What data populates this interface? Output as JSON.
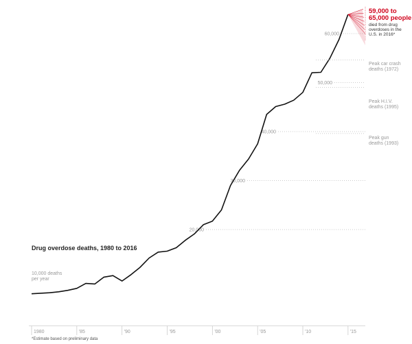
{
  "chart_data": {
    "type": "line",
    "title": "Drug overdose deaths, 1980 to 2016",
    "ylabel_lines": [
      "10,000 deaths",
      "per year"
    ],
    "xlim": [
      1980,
      2016
    ],
    "ylim": [
      0,
      65000
    ],
    "x_ticks": [
      {
        "value": 1980,
        "label": "1980"
      },
      {
        "value": 1985,
        "label": "'85"
      },
      {
        "value": 1990,
        "label": "'90"
      },
      {
        "value": 1995,
        "label": "'95"
      },
      {
        "value": 2000,
        "label": "'00"
      },
      {
        "value": 2005,
        "label": "'05"
      },
      {
        "value": 2010,
        "label": "'10"
      },
      {
        "value": 2015,
        "label": "'15"
      }
    ],
    "y_ticks": [
      {
        "value": 20000,
        "label": "20,000"
      },
      {
        "value": 30000,
        "label": "30,000"
      },
      {
        "value": 40000,
        "label": "40,000"
      },
      {
        "value": 50000,
        "label": "50,000"
      },
      {
        "value": 60000,
        "label": "60,000"
      }
    ],
    "series": [
      {
        "x": [
          1980,
          1981,
          1982,
          1983,
          1984,
          1985,
          1986,
          1987,
          1988,
          1989,
          1990,
          1991,
          1992,
          1993,
          1994,
          1995,
          1996,
          1997,
          1998,
          1999,
          2000,
          2001,
          2002,
          2003,
          2004,
          2005,
          2006,
          2007,
          2008,
          2009,
          2010,
          2011,
          2012,
          2013,
          2014,
          2015
        ],
        "y": [
          6900,
          7000,
          7100,
          7300,
          7600,
          8000,
          9000,
          8900,
          10300,
          10600,
          9500,
          10800,
          12300,
          14200,
          15400,
          15600,
          16300,
          17800,
          19100,
          21000,
          21700,
          24000,
          29000,
          32100,
          34400,
          37500,
          43500,
          45100,
          45600,
          46400,
          48000,
          52000,
          52100,
          55000,
          58800,
          63900
        ]
      }
    ],
    "estimate": {
      "x": 2016,
      "low": 59000,
      "high": 65000
    },
    "annotations": {
      "peaks": [
        {
          "label_lines": [
            "Peak car crash",
            "deaths (1972)"
          ],
          "value": 54600
        },
        {
          "label_lines": [
            "Peak H.I.V.",
            "deaths (1995)"
          ],
          "value": 49000
        },
        {
          "label_lines": [
            "Peak gun",
            "deaths (1993)"
          ],
          "value": 39600
        }
      ],
      "highlight": {
        "lines_big": [
          "59,000 to",
          "65,000 people"
        ],
        "lines_small": [
          "died from drug",
          "overdoses in the",
          "U.S. in 2016*"
        ]
      }
    },
    "footnote": "*Estimate based on preliminary data",
    "colors": {
      "line": "#111111",
      "estimate": "#d0021b",
      "grid": "#bbbbbb",
      "tick": "#999999"
    }
  }
}
